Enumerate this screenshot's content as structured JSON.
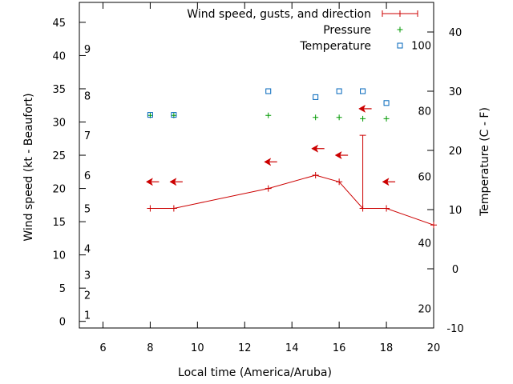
{
  "chart_data": {
    "type": "line",
    "xlabel": "Local time (America/Aruba)",
    "ylabel_left": "Wind speed (kt - Beaufort)",
    "ylabel_right": "Temperature (C - F)",
    "xlim": [
      5,
      20
    ],
    "xticks": [
      6,
      8,
      10,
      12,
      14,
      16,
      18,
      20
    ],
    "ylim_left": [
      -1,
      48
    ],
    "yticks_left": [
      0,
      5,
      10,
      15,
      20,
      25,
      30,
      35,
      40,
      45
    ],
    "ylim_right_celsius": [
      -10,
      45
    ],
    "yticks_right_celsius": [
      -10,
      0,
      10,
      20,
      30,
      40
    ],
    "fahrenheit_labels": [
      {
        "label": "20",
        "celsius": -6.7
      },
      {
        "label": "40",
        "celsius": 4.4
      },
      {
        "label": "60",
        "celsius": 15.6
      },
      {
        "label": "80",
        "celsius": 26.7
      },
      {
        "label": "100",
        "celsius": 37.8
      }
    ],
    "beaufort_labels": [
      {
        "label": "1",
        "knots": 1
      },
      {
        "label": "2",
        "knots": 4
      },
      {
        "label": "3",
        "knots": 7
      },
      {
        "label": "4",
        "knots": 11
      },
      {
        "label": "5",
        "knots": 17
      },
      {
        "label": "6",
        "knots": 22
      },
      {
        "label": "7",
        "knots": 28
      },
      {
        "label": "8",
        "knots": 34
      },
      {
        "label": "9",
        "knots": 41
      }
    ],
    "legend": {
      "placement": "top-right",
      "entries": [
        "Wind speed, gusts, and direction",
        "Pressure",
        "Temperature"
      ]
    },
    "series": [
      {
        "name": "Wind speed, gusts, and direction",
        "color": "#cc0000",
        "x": [
          8,
          9,
          13,
          15,
          16,
          17,
          18,
          20
        ],
        "y": [
          17,
          17,
          20,
          22,
          21,
          17,
          17,
          14.5
        ],
        "gusts": [
          {
            "x": 17,
            "y": 28
          }
        ],
        "direction_arrows": [
          {
            "x": 8,
            "y": 21
          },
          {
            "x": 9,
            "y": 21
          },
          {
            "x": 13,
            "y": 24
          },
          {
            "x": 15,
            "y": 26
          },
          {
            "x": 16,
            "y": 25
          },
          {
            "x": 17,
            "y": 32
          },
          {
            "x": 18,
            "y": 21
          }
        ]
      },
      {
        "name": "Pressure",
        "color": "#009900",
        "x": [
          8,
          9,
          13,
          15,
          16,
          17,
          18
        ],
        "y": [
          31,
          31,
          31,
          30.7,
          30.7,
          30.5,
          30.5
        ]
      },
      {
        "name": "Temperature",
        "color": "#0066bb",
        "x": [
          8,
          9,
          13,
          15,
          16,
          17,
          18
        ],
        "y": [
          26,
          26,
          30,
          29,
          30,
          30,
          28
        ]
      }
    ]
  }
}
